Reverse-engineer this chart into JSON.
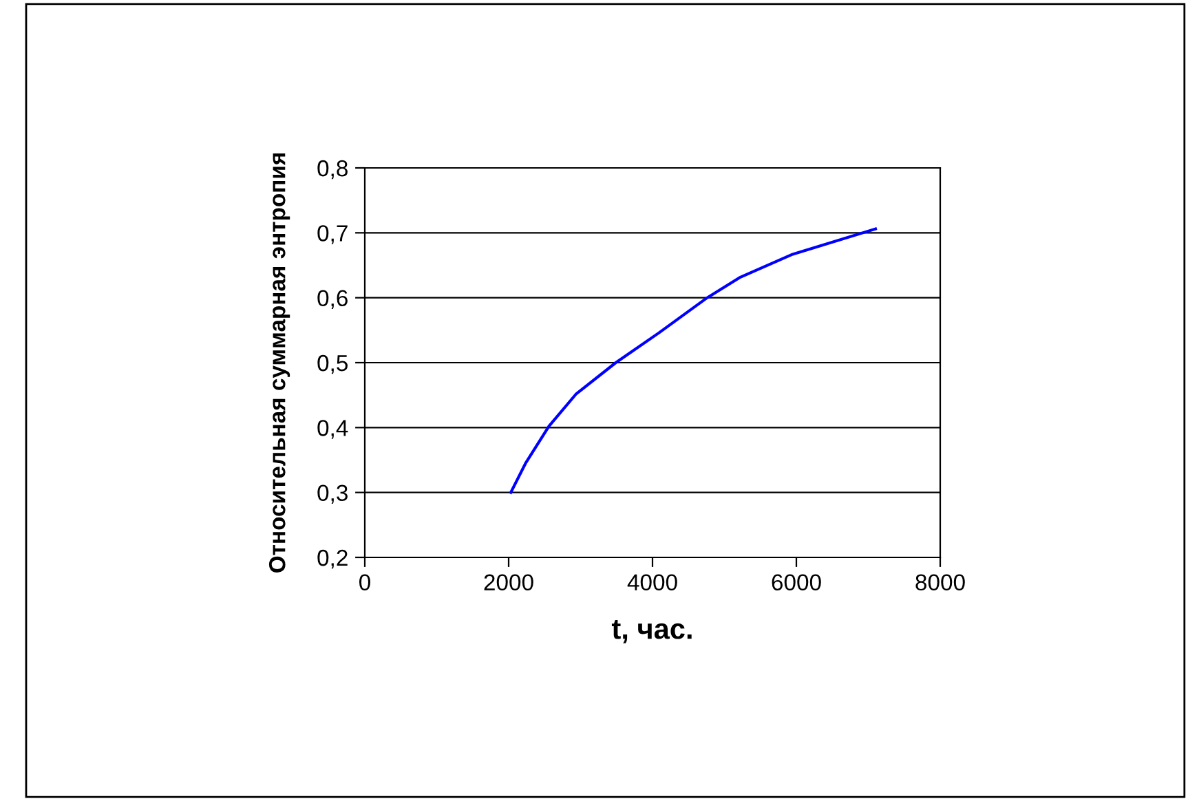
{
  "chart_data": {
    "type": "line",
    "xlabel": "t, час.",
    "ylabel": "Относительная суммарная энтропия",
    "series": [
      {
        "color": "#0000ff",
        "x": [
          2030,
          2240,
          2560,
          2940,
          3490,
          4090,
          4760,
          5210,
          5950,
          7100
        ],
        "values": [
          0.3,
          0.346,
          0.402,
          0.452,
          0.5,
          0.546,
          0.6,
          0.631,
          0.667,
          0.706
        ]
      }
    ],
    "xlim": [
      0,
      8000
    ],
    "xticks": [
      0,
      2000,
      4000,
      6000,
      8000
    ],
    "ylim": [
      0.2,
      0.8
    ],
    "yticks": [
      {
        "value": 0.2,
        "label": "0,2"
      },
      {
        "value": 0.3,
        "label": "0,3"
      },
      {
        "value": 0.4,
        "label": "0,4"
      },
      {
        "value": 0.5,
        "label": "0,5"
      },
      {
        "value": 0.6,
        "label": "0,6"
      },
      {
        "value": 0.7,
        "label": "0,7"
      },
      {
        "value": 0.8,
        "label": "0,8"
      }
    ],
    "grid": "y",
    "legend": false,
    "marker": "none",
    "line_style": "solid"
  }
}
